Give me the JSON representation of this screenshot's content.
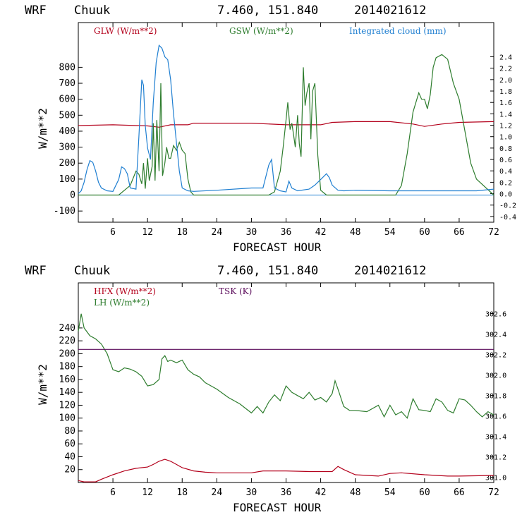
{
  "colors": {
    "glw": "#b3001b",
    "gsw": "#2e7d2e",
    "cloud": "#1f7fd1",
    "hfx": "#b3001b",
    "lh": "#2e7d2e",
    "tsk": "#5a0a5a",
    "zero": "#1f7fd1"
  },
  "chart_data": [
    {
      "type": "line",
      "header": {
        "model": "WRF",
        "station": "Chuuk",
        "coords": "7.460, 151.840",
        "init": "2014021612"
      },
      "xlabel": "FORECAST HOUR",
      "ylabel": "W/m**2",
      "xlim": [
        0,
        72
      ],
      "ylim": [
        -170,
        1080
      ],
      "y2lim": [
        -0.5,
        3.0
      ],
      "xticks": [
        6,
        12,
        18,
        24,
        30,
        36,
        42,
        48,
        54,
        60,
        66,
        72
      ],
      "yticks": [
        -100,
        0,
        100,
        200,
        300,
        400,
        500,
        600,
        700,
        800
      ],
      "y2ticks": [
        -0.4,
        -0.2,
        0,
        0.2,
        0.4,
        0.6,
        0.8,
        1.0,
        1.2,
        1.4,
        1.6,
        1.8,
        2.0,
        2.2,
        2.4
      ],
      "legend": [
        "GLW (W/m**2)",
        "GSW (W/m**2)",
        "Integrated cloud (mm)"
      ],
      "series": [
        {
          "name": "GLW (W/m**2)",
          "axis": "left",
          "x": [
            0,
            6,
            12,
            14,
            16,
            19,
            20,
            24,
            30,
            36,
            42,
            44,
            48,
            54,
            58,
            60,
            63,
            66,
            72
          ],
          "values": [
            435,
            440,
            433,
            425,
            440,
            440,
            450,
            450,
            450,
            440,
            440,
            455,
            460,
            460,
            445,
            430,
            445,
            455,
            460
          ]
        },
        {
          "name": "GSW (W/m**2)",
          "axis": "left",
          "x": [
            0,
            7,
            9,
            10,
            10.5,
            11,
            11.3,
            11.6,
            12,
            12.3,
            12.8,
            13,
            13.3,
            13.6,
            14,
            14.3,
            14.6,
            15,
            15.3,
            15.7,
            16,
            16.5,
            17,
            17.5,
            18,
            18.5,
            19,
            19.5,
            20,
            33,
            34,
            35,
            35.5,
            36,
            36.3,
            36.7,
            37,
            37.3,
            37.6,
            38,
            38.3,
            38.6,
            39,
            39.3,
            39.6,
            40,
            40.3,
            40.6,
            41,
            41.5,
            42,
            43,
            55,
            56,
            57,
            58,
            58.5,
            59,
            59.5,
            60,
            60.5,
            61,
            61.5,
            62,
            63,
            64,
            65,
            66,
            67,
            68,
            69,
            72
          ],
          "values": [
            0,
            0,
            60,
            150,
            130,
            70,
            200,
            40,
            230,
            90,
            180,
            450,
            90,
            470,
            150,
            700,
            120,
            200,
            300,
            230,
            230,
            310,
            280,
            330,
            280,
            260,
            100,
            20,
            0,
            0,
            20,
            150,
            300,
            470,
            580,
            410,
            450,
            380,
            300,
            500,
            320,
            240,
            800,
            560,
            640,
            700,
            350,
            650,
            700,
            250,
            30,
            0,
            0,
            60,
            260,
            520,
            580,
            640,
            600,
            600,
            540,
            630,
            800,
            860,
            880,
            850,
            700,
            600,
            400,
            200,
            100,
            0
          ],
          "y2": []
        },
        {
          "name": "Integrated cloud (mm)",
          "axis": "right",
          "x": [
            0,
            0.5,
            1,
            1.5,
            2,
            2.5,
            3,
            3.5,
            4,
            5,
            6,
            7,
            7.5,
            8,
            8.5,
            9,
            10,
            10.5,
            11,
            11.3,
            11.6,
            12,
            12.5,
            13,
            13.5,
            14,
            14.5,
            15,
            15.5,
            16,
            16.5,
            17,
            17.5,
            18,
            19,
            20,
            24,
            30,
            32,
            33,
            33.5,
            34,
            35,
            36,
            36.5,
            37,
            38,
            40,
            41,
            42,
            43,
            43.5,
            44,
            45,
            46,
            48,
            54,
            60,
            66,
            69,
            72
          ],
          "values": [
            0,
            0.05,
            0.2,
            0.42,
            0.58,
            0.55,
            0.4,
            0.2,
            0.1,
            0.05,
            0.04,
            0.25,
            0.47,
            0.44,
            0.35,
            0.1,
            0.08,
            1.0,
            2.0,
            1.9,
            1.2,
            0.8,
            0.6,
            1.6,
            2.3,
            2.6,
            2.55,
            2.4,
            2.35,
            2.0,
            1.4,
            0.9,
            0.4,
            0.1,
            0.05,
            0.04,
            0.06,
            0.1,
            0.1,
            0.5,
            0.6,
            0.1,
            0.05,
            0.03,
            0.22,
            0.1,
            0.05,
            0.08,
            0.15,
            0.25,
            0.35,
            0.28,
            0.15,
            0.06,
            0.05,
            0.06,
            0.05,
            0.05,
            0.05,
            0.05,
            0.08
          ]
        }
      ]
    },
    {
      "type": "line",
      "header": {
        "model": "WRF",
        "station": "Chuuk",
        "coords": "7.460, 151.840",
        "init": "2014021612"
      },
      "xlabel": "FORECAST HOUR",
      "ylabel": "W/m**2",
      "xlim": [
        0,
        72
      ],
      "ylim": [
        0,
        310
      ],
      "y2lim": [
        300.95,
        302.9
      ],
      "xticks": [
        6,
        12,
        18,
        24,
        30,
        36,
        42,
        48,
        54,
        60,
        66,
        72
      ],
      "yticks": [
        20,
        40,
        60,
        80,
        100,
        120,
        140,
        160,
        180,
        200,
        220,
        240
      ],
      "y2ticks": [
        301.0,
        301.2,
        301.4,
        301.6,
        301.8,
        302.0,
        302.2,
        302.4,
        302.6
      ],
      "y2ticklabels": [
        "301.0",
        "301.2",
        "301.4",
        "301.6",
        "301.8",
        "302.0",
        "302.2",
        "302.4",
        "302.6"
      ],
      "legend": [
        "HFX (W/m**2)",
        "LH  (W/m**2)",
        "TSK (K)"
      ],
      "series": [
        {
          "name": "HFX (W/m**2)",
          "axis": "left",
          "x": [
            0,
            1,
            3,
            4,
            6,
            8,
            10,
            12,
            13,
            14,
            15,
            16,
            17,
            18,
            20,
            22,
            24,
            30,
            32,
            36,
            40,
            44,
            45,
            46,
            48,
            52,
            54,
            56,
            60,
            64,
            66,
            72
          ],
          "values": [
            3,
            1,
            1,
            5,
            12,
            18,
            22,
            24,
            28,
            33,
            36,
            33,
            28,
            23,
            18,
            16,
            15,
            15,
            18,
            18,
            17,
            17,
            25,
            20,
            12,
            10,
            14,
            15,
            12,
            10,
            10,
            11
          ]
        },
        {
          "name": "LH  (W/m**2)",
          "axis": "left",
          "x": [
            0,
            0.5,
            1,
            2,
            3,
            4,
            5,
            6,
            7,
            8,
            9,
            10,
            11,
            12,
            13,
            14,
            14.5,
            15,
            15.5,
            16,
            17,
            18,
            19,
            20,
            21,
            22,
            24,
            26,
            28,
            30,
            31,
            32,
            33,
            34,
            35,
            36,
            37,
            38,
            39,
            40,
            41,
            42,
            43,
            44,
            44.5,
            45,
            46,
            47,
            48,
            50,
            52,
            53,
            54,
            55,
            56,
            57,
            58,
            59,
            60,
            61,
            62,
            63,
            64,
            65,
            66,
            67,
            68,
            69,
            70,
            71,
            72
          ],
          "values": [
            235,
            262,
            240,
            228,
            223,
            215,
            200,
            175,
            172,
            178,
            176,
            172,
            165,
            150,
            152,
            160,
            192,
            197,
            188,
            190,
            186,
            190,
            175,
            168,
            164,
            155,
            145,
            132,
            122,
            108,
            118,
            108,
            125,
            136,
            127,
            150,
            140,
            135,
            130,
            140,
            128,
            132,
            125,
            138,
            158,
            145,
            118,
            112,
            112,
            110,
            120,
            102,
            120,
            105,
            110,
            100,
            130,
            113,
            112,
            110,
            130,
            125,
            112,
            108,
            130,
            128,
            120,
            110,
            102,
            110,
            105
          ]
        },
        {
          "name": "TSK (K)",
          "axis": "right",
          "x": [
            0,
            72
          ],
          "values": [
            302.25,
            302.25
          ]
        }
      ]
    }
  ]
}
